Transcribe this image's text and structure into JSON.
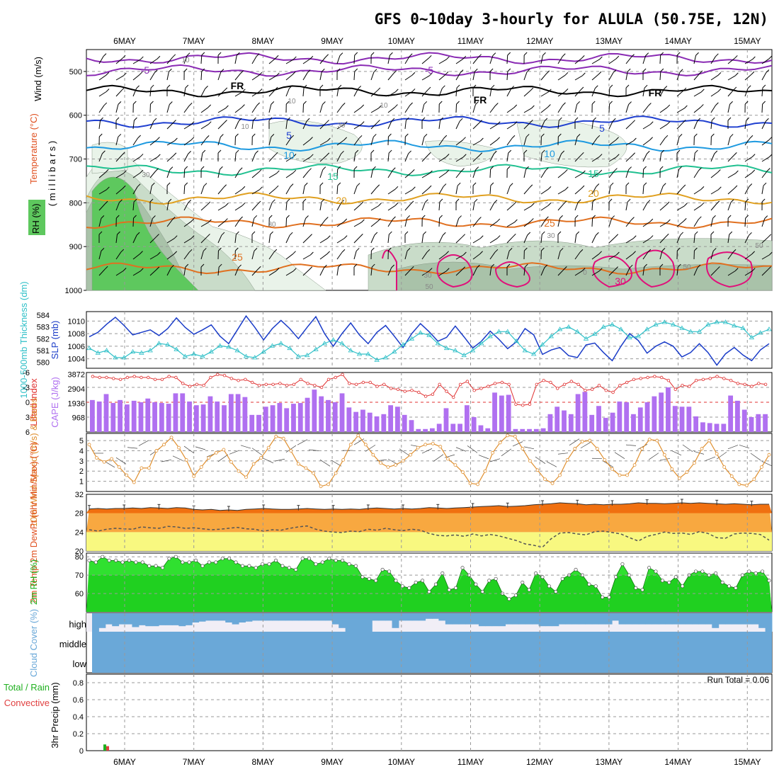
{
  "title": "GFS 0~10day 3-hourly for ALULA (50.75E, 12N)",
  "days": [
    "6MAY",
    "7MAY",
    "8MAY",
    "9MAY",
    "10MAY",
    "11MAY",
    "12MAY",
    "13MAY",
    "14MAY",
    "15MAY"
  ],
  "run_total": "Run Total = 0.06",
  "colors": {
    "rh_fill": [
      "#e9f3e9",
      "#c9dcc9",
      "#a9c2a9",
      "#5ec85e"
    ],
    "temp_cold": "#8a2bb4",
    "temp_fr": "#000000",
    "temp_5": "#2040d0",
    "temp_10": "#1e9ae0",
    "temp_15": "#20c090",
    "temp_20": "#e0a020",
    "temp_25": "#e07020",
    "temp_30": "#e0107a",
    "slp": "#1a3cc8",
    "thickness": "#30c0c8",
    "lifted": "#e03030",
    "cape": "#b070f0",
    "wind": "#e09030",
    "temp2m_fill": "#f07010",
    "dew_band": "#f8a840",
    "low_band": "#f8f880",
    "rh2m": "#30e030",
    "cloud": "#6aa8d8",
    "precip": "#e04040"
  },
  "chart_data": [
    {
      "type": "heatmap",
      "panel": "upper-air",
      "ylabel": "( m i l l i b a r s )",
      "legend": [
        "RH (%)",
        "Temperature (°C)",
        "Wind (m/s)"
      ],
      "ylim": [
        1000,
        450
      ],
      "yticks": [
        500,
        600,
        700,
        800,
        900,
        1000
      ],
      "contour_labels": [
        "-5",
        "-5",
        "FR",
        "FR",
        "FR",
        "5",
        "5",
        "10",
        "10",
        "15",
        "15",
        "20",
        "20",
        "25",
        "25",
        "30",
        "10",
        "10",
        "10",
        "10",
        "30",
        "30",
        "30",
        "30",
        "30",
        "50",
        "50",
        "0",
        "50"
      ]
    },
    {
      "type": "line",
      "panel": "slp-thickness",
      "ylabel_left": "1000-500mb Thickness (dm)",
      "ylabel_right": "SLP (mb)",
      "left_ticks": [
        "584",
        "583",
        "582",
        "581",
        "580"
      ],
      "right_ticks": [
        "1010",
        "1008",
        "1006",
        "1004"
      ],
      "x": [
        0,
        1,
        2,
        3,
        4,
        5,
        6,
        7,
        8,
        9,
        10,
        11,
        12,
        13,
        14,
        15,
        16,
        17,
        18,
        19,
        20,
        21,
        22,
        23,
        24,
        25,
        26,
        27,
        28,
        29,
        30,
        31,
        32,
        33,
        34,
        35,
        36,
        37,
        38,
        39,
        40,
        41,
        42,
        43,
        44,
        45,
        46,
        47,
        48,
        49,
        50,
        51,
        52,
        53,
        54,
        55,
        56,
        57,
        58,
        59,
        60,
        61,
        62,
        63,
        64,
        65,
        66,
        67,
        68,
        69,
        70,
        71,
        72,
        73,
        74,
        75,
        76,
        77,
        78
      ],
      "series": [
        {
          "name": "SLP",
          "values": [
            1007.5,
            1008.2,
            1009.5,
            1010.6,
            1009.3,
            1007.8,
            1008.2,
            1008.6,
            1007.7,
            1008.8,
            1010.5,
            1009.0,
            1007.9,
            1008.6,
            1009.4,
            1007.6,
            1006.4,
            1008.6,
            1010.8,
            1009.0,
            1007.0,
            1008.8,
            1010.1,
            1008.8,
            1007.2,
            1009.0,
            1010.7,
            1008.0,
            1006.0,
            1008.0,
            1009.7,
            1007.8,
            1006.4,
            1008.2,
            1009.3,
            1007.6,
            1005.8,
            1008.0,
            1009.6,
            1008.3,
            1006.8,
            1007.4,
            1009.2,
            1007.5,
            1005.7,
            1006.8,
            1008.4,
            1007.1,
            1005.6,
            1006.7,
            1008.8,
            1007.8,
            1004.7,
            1005.4,
            1005.8,
            1004.5,
            1004.2,
            1006.2,
            1006.5,
            1005.0,
            1003.7,
            1006.0,
            1008.0,
            1006.9,
            1004.9,
            1006.0,
            1006.7,
            1006.0,
            1004.3,
            1005.0,
            1006.4,
            1005.0,
            1003.0,
            1004.8,
            1005.8,
            1004.6,
            1003.7,
            1005.4,
            1006.4
          ]
        },
        {
          "name": "Thickness",
          "values": [
            581.2,
            580.8,
            581.0,
            580.4,
            580.4,
            580.9,
            580.8,
            581.0,
            581.6,
            581.5,
            581.1,
            580.5,
            580.7,
            580.5,
            580.9,
            581.4,
            581.3,
            581.0,
            580.5,
            580.4,
            580.9,
            581.4,
            581.6,
            581.2,
            580.5,
            580.6,
            581.1,
            581.6,
            581.9,
            581.6,
            581.0,
            580.7,
            580.7,
            580.2,
            580.4,
            580.9,
            581.5,
            582.0,
            582.5,
            582.3,
            581.6,
            581.2,
            581.0,
            580.6,
            581.0,
            581.6,
            582.2,
            582.6,
            582.6,
            581.8,
            581.0,
            580.7,
            581.5,
            582.2,
            582.8,
            583.0,
            582.6,
            582.0,
            582.4,
            583.0,
            583.2,
            582.8,
            582.1,
            582.2,
            582.8,
            583.2,
            583.4,
            583.2,
            582.9,
            582.6,
            582.6,
            583.2,
            583.4,
            583.4,
            583.1,
            582.9,
            582.1,
            582.5,
            582.8
          ]
        }
      ]
    },
    {
      "type": "bar",
      "panel": "lifted-cape",
      "ylabel_left": "Lifted Index",
      "ylabel_right": "CAPE (J/kg)",
      "left_ticks": [
        "-6",
        "-3",
        "0",
        "3",
        "6"
      ],
      "right_ticks": [
        "3872",
        "2904",
        "1936",
        "968"
      ],
      "series": [
        {
          "name": "CAPE",
          "values": [
            2150,
            2050,
            2550,
            1950,
            2150,
            1850,
            2100,
            2000,
            2250,
            2000,
            1950,
            1900,
            2600,
            2600,
            2050,
            1800,
            1850,
            2400,
            2050,
            1800,
            2550,
            2550,
            2350,
            1150,
            1150,
            1700,
            1800,
            1950,
            1600,
            1900,
            1950,
            2300,
            2850,
            2400,
            2150,
            2000,
            2600,
            1650,
            1350,
            1500,
            1300,
            1050,
            1200,
            1800,
            1700,
            1150,
            800,
            200,
            200,
            250,
            550,
            1600,
            550,
            550,
            1800,
            1000,
            450,
            250,
            2650,
            2450,
            2500,
            200,
            200,
            200,
            200,
            250,
            1200,
            1700,
            1450,
            1200,
            2550,
            2700,
            1150,
            1750,
            950,
            1300,
            2050,
            2000,
            1200,
            1650,
            2000,
            2400,
            2650,
            3000,
            1750,
            1700,
            1700,
            1050,
            650,
            600,
            550,
            550,
            2450,
            2100,
            1500,
            1000,
            1200,
            1200
          ]
        },
        {
          "name": "Lifted Index",
          "values": [
            -5.2,
            -5.0,
            -5.0,
            -4.8,
            -4.6,
            -5.0,
            -5.2,
            -5.0,
            -5.0,
            -4.6,
            -4.6,
            -5.2,
            -5.0,
            -3.8,
            -3.2,
            -3.6,
            -3.4,
            -5.0,
            -5.6,
            -5.4,
            -4.8,
            -4.4,
            -4.6,
            -4.0,
            -3.4,
            -3.6,
            -3.6,
            -3.8,
            -3.4,
            -3.6,
            -4.6,
            -3.8,
            -3.4,
            -3.0,
            -4.6,
            -5.0,
            -5.6,
            -3.8,
            -3.6,
            -4.0,
            -4.0,
            -3.2,
            -3.6,
            -2.8,
            -2.6,
            -2.2,
            -2.4,
            -2.0,
            -1.2,
            -1.6,
            -3.6,
            -2.2,
            -1.0,
            -3.6,
            -4.2,
            -2.4,
            -2.8,
            -3.2,
            -3.8,
            -4.0,
            -3.6,
            0.4,
            0.6,
            0.4,
            -3.6,
            -4.4,
            -4.0,
            -2.8,
            -3.6,
            -4.2,
            -3.6,
            -2.4,
            -2.6,
            -3.4,
            -2.4,
            -2.0,
            -3.4,
            -4.0,
            -4.6,
            -4.8,
            -5.0,
            -5.2,
            -5.0,
            -4.4,
            -2.6,
            -3.4,
            -3.2,
            -4.4,
            -4.6,
            -4.8,
            -5.2,
            -4.8,
            -4.4,
            -3.8,
            -3.6,
            -3.2,
            -3.8,
            -3.6
          ]
        }
      ]
    },
    {
      "type": "line",
      "panel": "wind-10m",
      "ylabel": "10m Wind Speed (m/s) & Barbs",
      "yticks": [
        "5",
        "4",
        "3",
        "2",
        "1"
      ],
      "ylim": [
        0,
        5.5
      ],
      "series": [
        {
          "name": "10m Wind Speed",
          "values": [
            4.6,
            3.3,
            2.9,
            3.2,
            2.4,
            1.6,
            0.9,
            2.3,
            2.3,
            4.0,
            4.6,
            5.3,
            4.3,
            3.1,
            1.5,
            2.4,
            3.3,
            3.8,
            4.1,
            2.9,
            2.0,
            1.4,
            2.7,
            3.3,
            4.3,
            5.4,
            5.2,
            4.0,
            2.7,
            2.3,
            1.8,
            0.5,
            0.7,
            1.8,
            3.1,
            4.6,
            5.5,
            4.6,
            3.6,
            2.8,
            2.4,
            2.6,
            3.0,
            3.6,
            4.3,
            4.6,
            4.7,
            4.4,
            3.2,
            2.6,
            1.9,
            0.8,
            0.7,
            2.0,
            3.8,
            4.8,
            5.5,
            5.4,
            4.2,
            3.0,
            2.1,
            1.2,
            0.8,
            1.6,
            3.1,
            4.2,
            4.9,
            5.0,
            4.2,
            3.1,
            2.2,
            1.6,
            1.6,
            2.6,
            4.2,
            5.1,
            5.0,
            3.6,
            2.2,
            1.3,
            1.9,
            2.8,
            4.2,
            5.0,
            3.7,
            2.4,
            1.5,
            0.7,
            0.6,
            1.2,
            2.4,
            3.6
          ]
        }
      ]
    },
    {
      "type": "area",
      "panel": "temp-2m",
      "ylabel": "2m Temp 2m DewPt (6hr Min/Max) (°C)",
      "yticks": [
        "32",
        "28",
        "24",
        "20"
      ],
      "ylim": [
        20,
        32
      ],
      "series": [
        {
          "name": "2m Temp",
          "values": [
            28.9,
            29.0,
            28.9,
            29.0,
            29.0,
            29.1,
            29.0,
            29.2,
            29.1,
            29.0,
            29.2,
            29.1,
            28.8,
            28.7,
            28.8,
            28.6,
            28.7,
            28.6,
            28.8,
            28.9,
            29.0,
            28.9,
            28.8,
            28.8,
            28.9,
            29.0,
            28.9,
            28.8,
            28.9,
            28.8,
            28.9,
            28.8,
            29.0,
            29.1,
            29.0,
            28.9,
            29.0,
            28.9,
            29.0,
            29.2,
            29.1,
            29.0,
            29.1,
            29.2,
            29.3,
            29.4,
            29.5,
            29.6,
            29.4,
            29.5,
            29.6,
            29.8,
            29.9,
            30.0,
            30.2,
            30.1,
            30.0,
            29.8,
            29.9,
            29.8,
            29.9,
            29.9,
            30.0,
            30.2,
            30.1,
            30.1,
            30.0,
            30.1,
            30.2,
            30.1,
            30.2,
            30.1,
            30.0,
            29.9,
            30.0,
            29.9,
            29.8,
            29.9,
            29.9
          ]
        },
        {
          "name": "2m DewPt",
          "values": [
            24.5,
            24.2,
            24.6,
            24.8,
            24.7,
            24.6,
            25.1,
            24.9,
            24.8,
            25.2,
            25.1,
            24.8,
            24.9,
            24.7,
            24.5,
            24.6,
            24.8,
            25.0,
            24.7,
            24.6,
            24.2,
            24.5,
            24.4,
            24.8,
            25.1,
            25.3,
            24.6,
            24.2,
            24.0,
            23.9,
            24.2,
            24.1,
            24.6,
            24.4,
            24.8,
            24.5,
            24.3,
            24.6,
            24.4,
            23.7,
            23.3,
            23.2,
            23.4,
            23.1,
            23.6,
            23.2,
            23.5,
            23.2,
            22.7,
            22.2,
            21.5,
            21.2,
            20.8,
            22.6,
            23.8,
            23.9,
            23.6,
            23.4,
            24.1,
            24.2,
            23.9,
            23.6,
            22.8,
            22.1,
            23.1,
            23.5,
            24.0,
            23.7,
            23.8,
            23.5,
            24.1,
            23.7,
            22.8,
            22.7,
            23.6,
            23.8,
            23.7,
            23.5,
            22.3
          ]
        }
      ]
    },
    {
      "type": "area",
      "panel": "rh-2m",
      "ylabel": "2m RH (%)",
      "yticks": [
        "80",
        "70",
        "60"
      ],
      "ylim": [
        50,
        82
      ],
      "series": [
        {
          "name": "2m RH",
          "values": [
            78,
            77,
            80,
            78,
            78,
            77,
            78,
            77,
            77,
            75,
            75,
            74,
            79,
            80,
            77,
            77,
            78,
            75,
            77,
            77,
            79,
            79,
            77,
            75,
            75,
            74,
            76,
            76,
            78,
            75,
            74,
            73,
            79,
            79,
            76,
            77,
            79,
            78,
            78,
            76,
            75,
            69,
            68,
            67,
            73,
            72,
            67,
            64,
            63,
            66,
            67,
            61,
            65,
            71,
            62,
            63,
            74,
            70,
            65,
            61,
            67,
            68,
            60,
            57,
            59,
            66,
            62,
            71,
            69,
            64,
            61,
            68,
            70,
            73,
            70,
            65,
            64,
            58,
            58,
            69,
            76,
            70,
            63,
            62,
            74,
            72,
            67,
            66,
            69,
            64,
            70,
            72,
            72,
            70,
            71,
            66,
            64,
            63,
            70,
            72,
            71,
            72,
            67
          ]
        }
      ]
    },
    {
      "type": "area",
      "panel": "cloud-cover",
      "ylabel": "Cloud Cover (%)",
      "layers": [
        "high",
        "middle",
        "low"
      ],
      "series": [
        {
          "name": "high",
          "values": [
            100,
            80,
            60,
            70,
            60,
            60,
            75,
            65,
            70,
            70,
            65,
            65,
            65,
            70,
            65,
            50,
            45,
            40,
            40,
            40,
            50,
            60,
            50,
            45,
            40,
            40,
            40,
            40,
            40,
            40,
            40,
            40,
            40,
            40,
            40,
            40,
            60,
            80,
            100,
            100,
            100,
            100,
            40,
            40,
            40,
            80,
            40,
            40,
            40,
            40,
            30,
            30,
            40,
            60,
            60,
            60,
            60,
            60,
            70,
            70,
            70,
            70,
            60,
            60,
            60,
            60,
            60,
            70,
            70,
            70,
            60,
            60,
            60,
            60,
            60,
            60,
            60,
            60,
            40,
            60,
            60,
            60,
            60,
            60,
            60,
            60,
            60,
            60,
            60,
            60,
            60,
            60,
            60,
            80,
            60,
            60,
            60,
            60,
            60,
            60,
            80,
            100
          ]
        },
        {
          "name": "middle",
          "values": [
            100
          ]
        },
        {
          "name": "low",
          "values": [
            100
          ]
        }
      ]
    },
    {
      "type": "bar",
      "panel": "precip",
      "ylabel": "3hr Precip (mm)",
      "legend": [
        "Total / Rain",
        "Convective"
      ],
      "yticks": [
        "0.8",
        "0.6",
        "0.4",
        "0.2",
        "0"
      ],
      "ylim": [
        0,
        0.9
      ],
      "series": [
        {
          "name": "Total / Rain",
          "values": [
            0.04,
            0.02
          ]
        }
      ]
    }
  ]
}
